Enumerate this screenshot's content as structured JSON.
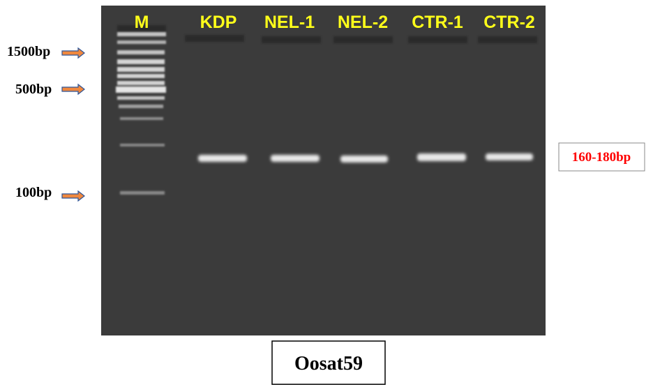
{
  "lanes": [
    "M",
    "KDP",
    "NEL-1",
    "NEL-2",
    "CTR-1",
    "CTR-2"
  ],
  "markers": [
    "1500bp",
    "500bp",
    "100bp"
  ],
  "band_label": "160-180bp",
  "caption": "Oosat59"
}
